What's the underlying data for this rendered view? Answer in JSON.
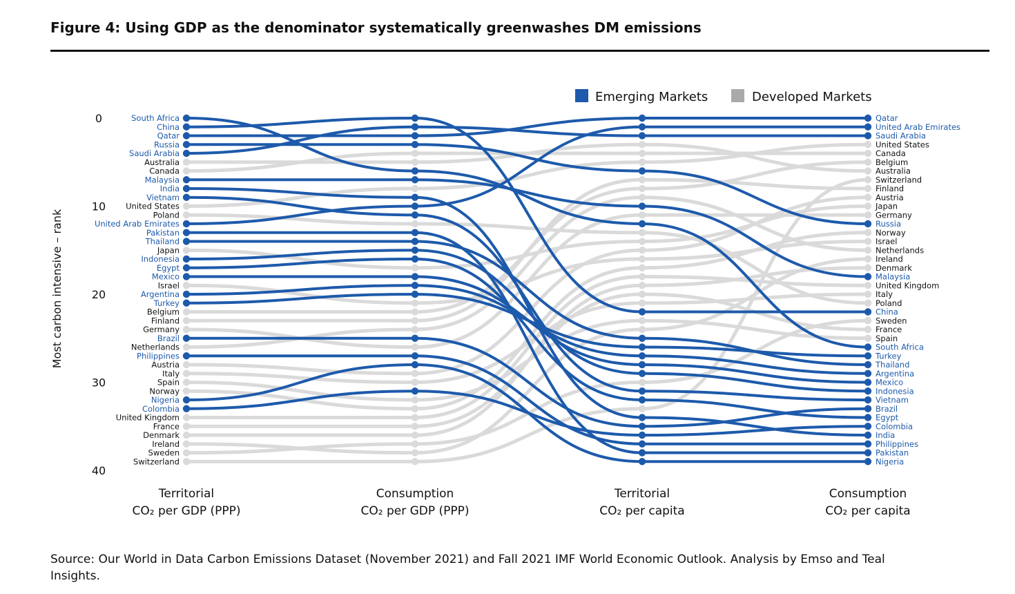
{
  "figure": {
    "title": "Figure 4: Using GDP as the denominator systematically greenwashes DM emissions",
    "source": "Source: Our World in Data Carbon Emissions Dataset (November 2021) and Fall 2021 IMF World Economic Outlook. Analysis by Emso and Teal Insights."
  },
  "chart_data": {
    "type": "bump",
    "ylabel": "Most carbon intensive – rank",
    "yticks": [
      0,
      10,
      20,
      30,
      40
    ],
    "ylim": [
      0,
      40
    ],
    "stage_labels": [
      [
        "Territorial",
        "CO₂ per GDP (PPP)"
      ],
      [
        "Consumption",
        "CO₂ per GDP (PPP)"
      ],
      [
        "Territorial",
        "CO₂ per capita"
      ],
      [
        "Consumption",
        "CO₂ per capita"
      ]
    ],
    "legend": [
      {
        "name": "Emerging Markets",
        "group": "EM",
        "color": "#1d5aab"
      },
      {
        "name": "Developed Markets",
        "group": "DM",
        "color": "#aaaaaa"
      }
    ],
    "legend_position": "top-right",
    "colors": {
      "EM": "#1d5aab",
      "DM": "#dadada",
      "DM_legend": "#aaaaaa",
      "EM_label": "#1d5aab",
      "DM_label": "#111111"
    },
    "stage1_order": [
      "South Africa",
      "China",
      "Qatar",
      "Russia",
      "Saudi Arabia",
      "Australia",
      "Canada",
      "Malaysia",
      "India",
      "Vietnam",
      "United States",
      "Poland",
      "United Arab Emirates",
      "Pakistan",
      "Thailand",
      "Japan",
      "Indonesia",
      "Egypt",
      "Mexico",
      "Israel",
      "Argentina",
      "Turkey",
      "Belgium",
      "Finland",
      "Germany",
      "Brazil",
      "Netherlands",
      "Philippines",
      "Austria",
      "Italy",
      "Spain",
      "Norway",
      "Nigeria",
      "Colombia",
      "United Kingdom",
      "France",
      "Denmark",
      "Ireland",
      "Sweden",
      "Switzerland"
    ],
    "stage4_order": [
      "Qatar",
      "United Arab Emirates",
      "Saudi Arabia",
      "United States",
      "Canada",
      "Belgium",
      "Australia",
      "Switzerland",
      "Finland",
      "Austria",
      "Japan",
      "Germany",
      "Russia",
      "Norway",
      "Israel",
      "Netherlands",
      "Ireland",
      "Denmark",
      "Malaysia",
      "United Kingdom",
      "Italy",
      "Poland",
      "China",
      "Sweden",
      "France",
      "Spain",
      "South Africa",
      "Turkey",
      "Thailand",
      "Argentina",
      "Mexico",
      "Indonesia",
      "Vietnam",
      "Brazil",
      "Egypt",
      "Colombia",
      "India",
      "Philippines",
      "Pakistan",
      "Nigeria"
    ],
    "countries": [
      {
        "name": "South Africa",
        "group": "EM",
        "ranks": [
          0,
          6,
          12,
          26
        ]
      },
      {
        "name": "China",
        "group": "EM",
        "ranks": [
          1,
          0,
          22,
          22
        ]
      },
      {
        "name": "Qatar",
        "group": "EM",
        "ranks": [
          2,
          2,
          0,
          0
        ]
      },
      {
        "name": "Russia",
        "group": "EM",
        "ranks": [
          3,
          3,
          6,
          12
        ]
      },
      {
        "name": "Saudi Arabia",
        "group": "EM",
        "ranks": [
          4,
          1,
          2,
          2
        ]
      },
      {
        "name": "Australia",
        "group": "DM",
        "ranks": [
          5,
          5,
          3,
          6
        ]
      },
      {
        "name": "Canada",
        "group": "DM",
        "ranks": [
          6,
          4,
          4,
          4
        ]
      },
      {
        "name": "Malaysia",
        "group": "EM",
        "ranks": [
          7,
          7,
          10,
          18
        ]
      },
      {
        "name": "India",
        "group": "EM",
        "ranks": [
          8,
          9,
          34,
          36
        ]
      },
      {
        "name": "Vietnam",
        "group": "EM",
        "ranks": [
          9,
          11,
          31,
          32
        ]
      },
      {
        "name": "United States",
        "group": "DM",
        "ranks": [
          10,
          8,
          5,
          3
        ]
      },
      {
        "name": "Poland",
        "group": "DM",
        "ranks": [
          11,
          12,
          13,
          21
        ]
      },
      {
        "name": "United Arab Emirates",
        "group": "EM",
        "ranks": [
          12,
          10,
          1,
          1
        ]
      },
      {
        "name": "Pakistan",
        "group": "EM",
        "ranks": [
          13,
          13,
          38,
          38
        ]
      },
      {
        "name": "Thailand",
        "group": "EM",
        "ranks": [
          14,
          14,
          25,
          28
        ]
      },
      {
        "name": "Japan",
        "group": "DM",
        "ranks": [
          15,
          17,
          14,
          10
        ]
      },
      {
        "name": "Indonesia",
        "group": "EM",
        "ranks": [
          16,
          15,
          29,
          31
        ]
      },
      {
        "name": "Egypt",
        "group": "EM",
        "ranks": [
          17,
          16,
          32,
          34
        ]
      },
      {
        "name": "Mexico",
        "group": "EM",
        "ranks": [
          18,
          18,
          28,
          30
        ]
      },
      {
        "name": "Israel",
        "group": "DM",
        "ranks": [
          19,
          21,
          16,
          14
        ]
      },
      {
        "name": "Argentina",
        "group": "EM",
        "ranks": [
          20,
          19,
          27,
          29
        ]
      },
      {
        "name": "Turkey",
        "group": "EM",
        "ranks": [
          21,
          20,
          26,
          27
        ]
      },
      {
        "name": "Belgium",
        "group": "DM",
        "ranks": [
          22,
          22,
          8,
          5
        ]
      },
      {
        "name": "Finland",
        "group": "DM",
        "ranks": [
          23,
          23,
          7,
          8
        ]
      },
      {
        "name": "Germany",
        "group": "DM",
        "ranks": [
          24,
          26,
          11,
          11
        ]
      },
      {
        "name": "Brazil",
        "group": "EM",
        "ranks": [
          25,
          25,
          35,
          33
        ]
      },
      {
        "name": "Netherlands",
        "group": "DM",
        "ranks": [
          26,
          24,
          9,
          15
        ]
      },
      {
        "name": "Philippines",
        "group": "EM",
        "ranks": [
          27,
          27,
          37,
          37
        ]
      },
      {
        "name": "Austria",
        "group": "DM",
        "ranks": [
          28,
          29,
          15,
          9
        ]
      },
      {
        "name": "Italy",
        "group": "DM",
        "ranks": [
          29,
          30,
          21,
          20
        ]
      },
      {
        "name": "Spain",
        "group": "DM",
        "ranks": [
          30,
          32,
          23,
          25
        ]
      },
      {
        "name": "Norway",
        "group": "DM",
        "ranks": [
          31,
          33,
          17,
          13
        ]
      },
      {
        "name": "Nigeria",
        "group": "EM",
        "ranks": [
          32,
          28,
          39,
          39
        ]
      },
      {
        "name": "Colombia",
        "group": "EM",
        "ranks": [
          33,
          31,
          36,
          35
        ]
      },
      {
        "name": "United Kingdom",
        "group": "DM",
        "ranks": [
          34,
          34,
          18,
          19
        ]
      },
      {
        "name": "France",
        "group": "DM",
        "ranks": [
          35,
          35,
          20,
          24
        ]
      },
      {
        "name": "Denmark",
        "group": "DM",
        "ranks": [
          36,
          36,
          19,
          17
        ]
      },
      {
        "name": "Ireland",
        "group": "DM",
        "ranks": [
          37,
          38,
          24,
          16
        ]
      },
      {
        "name": "Sweden",
        "group": "DM",
        "ranks": [
          38,
          37,
          30,
          23
        ]
      },
      {
        "name": "Switzerland",
        "group": "DM",
        "ranks": [
          39,
          39,
          33,
          7
        ]
      }
    ]
  }
}
